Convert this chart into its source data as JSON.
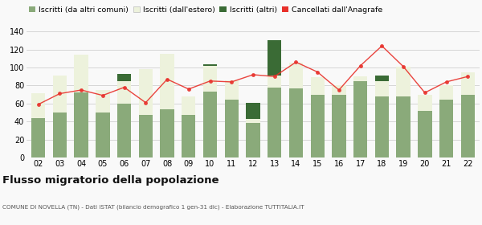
{
  "years": [
    "02",
    "03",
    "04",
    "05",
    "06",
    "07",
    "08",
    "09",
    "10",
    "11",
    "12",
    "13",
    "14",
    "15",
    "16",
    "17",
    "18",
    "19",
    "20",
    "21",
    "22"
  ],
  "iscritti_altri_comuni": [
    44,
    50,
    72,
    50,
    60,
    47,
    54,
    47,
    73,
    64,
    38,
    78,
    77,
    70,
    70,
    85,
    68,
    68,
    52,
    64,
    70
  ],
  "iscritti_estero": [
    27,
    41,
    42,
    25,
    25,
    51,
    61,
    21,
    29,
    22,
    5,
    13,
    28,
    19,
    10,
    5,
    17,
    33,
    18,
    16,
    25
  ],
  "iscritti_altri": [
    0,
    0,
    0,
    0,
    8,
    0,
    0,
    0,
    2,
    0,
    18,
    39,
    0,
    0,
    0,
    0,
    6,
    0,
    0,
    0,
    0
  ],
  "cancellati": [
    59,
    71,
    75,
    69,
    78,
    61,
    87,
    76,
    85,
    84,
    92,
    90,
    106,
    95,
    75,
    102,
    124,
    101,
    72,
    84,
    90
  ],
  "color_altri_comuni": "#8aaa7a",
  "color_estero": "#edf2dc",
  "color_altri": "#3a6b35",
  "color_cancellati": "#e8302a",
  "legend_labels": [
    "Iscritti (da altri comuni)",
    "Iscritti (dall'estero)",
    "Iscritti (altri)",
    "Cancellati dall'Anagrafe"
  ],
  "title": "Flusso migratorio della popolazione",
  "subtitle": "COMUNE DI NOVELLA (TN) - Dati ISTAT (bilancio demografico 1 gen-31 dic) - Elaborazione TUTTITALIA.IT",
  "ylim": [
    0,
    145
  ],
  "yticks": [
    0,
    20,
    40,
    60,
    80,
    100,
    120,
    140
  ],
  "background_color": "#f9f9f9",
  "grid_color": "#d0d0d0"
}
